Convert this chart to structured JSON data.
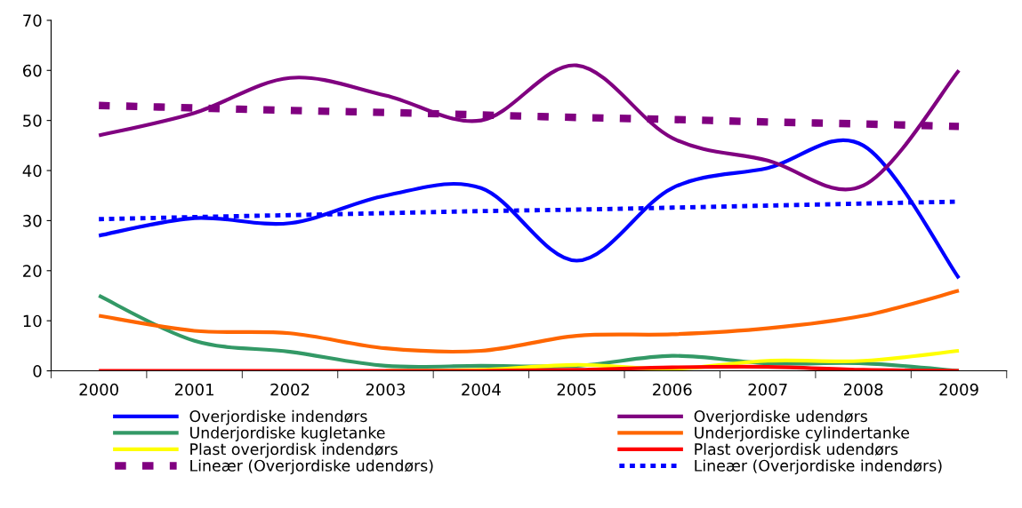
{
  "chart_data": {
    "type": "line",
    "categories": [
      "2000",
      "2001",
      "2002",
      "2003",
      "2004",
      "2005",
      "2006",
      "2007",
      "2008",
      "2009"
    ],
    "ylim": [
      0,
      70
    ],
    "yticks": [
      0,
      10,
      20,
      30,
      40,
      50,
      60,
      70
    ],
    "grid": false,
    "legend": "bottom",
    "marker": "none",
    "line_style": "solid",
    "series": [
      {
        "name": "Overjordiske indendørs",
        "color": "#0000ff",
        "values": [
          27,
          30.5,
          29.5,
          35,
          36.5,
          22,
          36.5,
          40.5,
          45,
          18.5
        ]
      },
      {
        "name": "Overjordiske udendørs",
        "color": "#800080",
        "values": [
          47,
          51.5,
          58.5,
          55,
          50,
          61,
          46.5,
          42,
          37,
          60
        ]
      },
      {
        "name": "Underjordiske kugletanke",
        "color": "#339966",
        "values": [
          15,
          6,
          3.8,
          1,
          1,
          1,
          3,
          1.5,
          1.5,
          0
        ]
      },
      {
        "name": "Underjordiske cylindertanke",
        "color": "#ff6600",
        "values": [
          11,
          8,
          7.5,
          4.5,
          4,
          7,
          7.3,
          8.5,
          11,
          16
        ]
      },
      {
        "name": "Plast overjordisk indendørs",
        "color": "#ffff00",
        "values": [
          null,
          null,
          null,
          0,
          0.2,
          1.2,
          0.4,
          2,
          2,
          4
        ]
      },
      {
        "name": "Plast overjordisk udendørs",
        "color": "#ff0000",
        "values": [
          0,
          0,
          0,
          0,
          0,
          0.2,
          0.7,
          0.8,
          0.2,
          0
        ]
      },
      {
        "name": "Lineær (Overjordiske udendørs)",
        "color": "#800080",
        "line_style": "dashed",
        "values": [
          53,
          52.5,
          52,
          51.6,
          51.1,
          50.6,
          50.2,
          49.7,
          49.3,
          48.8
        ]
      },
      {
        "name": "Lineær (Overjordiske indendørs)",
        "color": "#0000ff",
        "line_style": "dotted",
        "values": [
          30.3,
          30.7,
          31.1,
          31.5,
          31.9,
          32.2,
          32.6,
          33,
          33.4,
          33.8
        ]
      }
    ]
  }
}
